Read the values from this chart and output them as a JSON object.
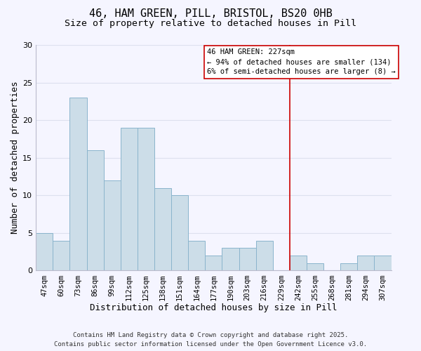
{
  "title": "46, HAM GREEN, PILL, BRISTOL, BS20 0HB",
  "subtitle": "Size of property relative to detached houses in Pill",
  "xlabel": "Distribution of detached houses by size in Pill",
  "ylabel": "Number of detached properties",
  "bar_labels": [
    "47sqm",
    "60sqm",
    "73sqm",
    "86sqm",
    "99sqm",
    "112sqm",
    "125sqm",
    "138sqm",
    "151sqm",
    "164sqm",
    "177sqm",
    "190sqm",
    "203sqm",
    "216sqm",
    "229sqm",
    "242sqm",
    "255sqm",
    "268sqm",
    "281sqm",
    "294sqm",
    "307sqm"
  ],
  "bar_heights": [
    5,
    4,
    23,
    16,
    12,
    19,
    19,
    11,
    10,
    4,
    2,
    3,
    3,
    4,
    0,
    2,
    1,
    0,
    1,
    2,
    2
  ],
  "bar_color": "#ccdde8",
  "bar_edge_color": "#8ab4cc",
  "ylim": [
    0,
    30
  ],
  "yticks": [
    0,
    5,
    10,
    15,
    20,
    25,
    30
  ],
  "vline_x": 14.5,
  "vline_color": "#cc0000",
  "annotation_title": "46 HAM GREEN: 227sqm",
  "annotation_line1": "← 94% of detached houses are smaller (134)",
  "annotation_line2": "6% of semi-detached houses are larger (8) →",
  "annotation_box_color": "#ffffff",
  "annotation_box_edge": "#cc0000",
  "footer1": "Contains HM Land Registry data © Crown copyright and database right 2025.",
  "footer2": "Contains public sector information licensed under the Open Government Licence v3.0.",
  "background_color": "#f5f5ff",
  "grid_color": "#dde0ee",
  "title_fontsize": 11,
  "subtitle_fontsize": 9.5,
  "tick_label_fontsize": 7.5,
  "axis_label_fontsize": 9,
  "footer_fontsize": 6.5
}
